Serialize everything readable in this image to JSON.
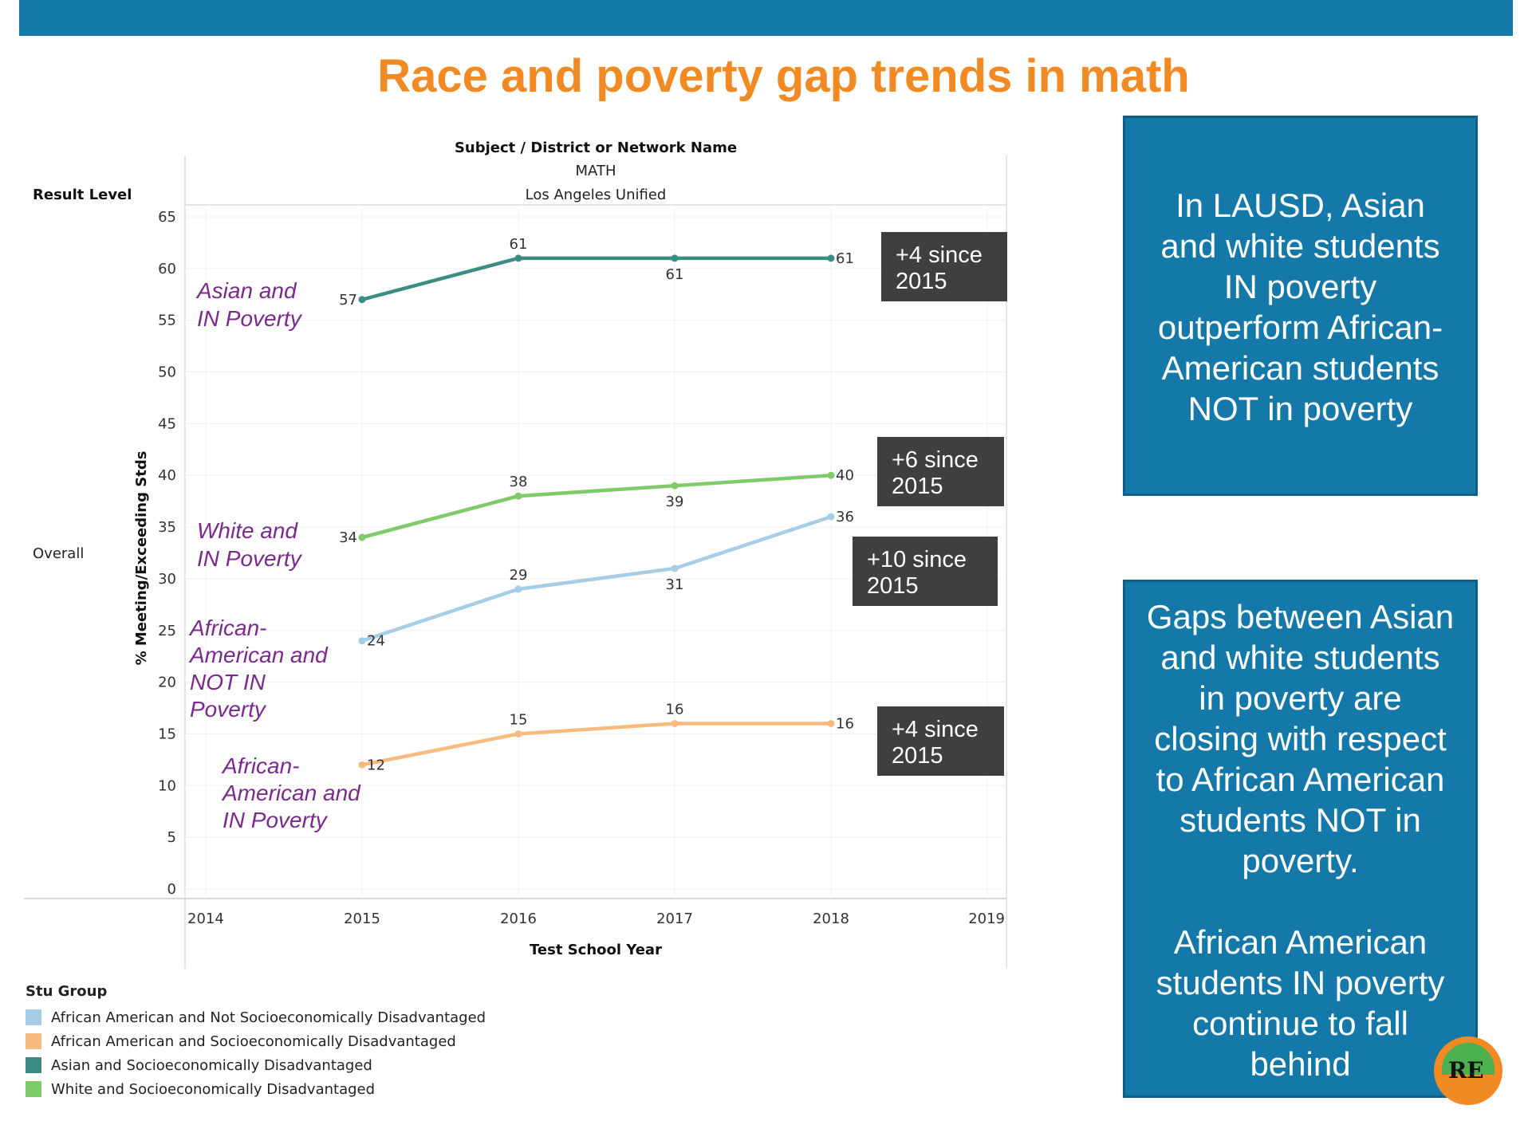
{
  "slide": {
    "title": "Race and poverty gap trends in math",
    "accent_color": "#1479a8",
    "title_color": "#f28a24"
  },
  "chart_data": {
    "type": "line",
    "header": {
      "subject_label": "Subject",
      "separator": "/",
      "district_label": "District or Network Name",
      "subject": "MATH",
      "district": "Los Angeles Unified"
    },
    "row_header": "Result Level",
    "row_label": "Overall",
    "ylabel": "% Meeting/Exceeding Stds",
    "xlabel": "Test School Year",
    "ylim": [
      0,
      65
    ],
    "yticks": [
      "0",
      "5",
      "10",
      "15",
      "20",
      "25",
      "30",
      "35",
      "40",
      "45",
      "50",
      "55",
      "60",
      "65"
    ],
    "xticks": [
      "2014",
      "2015",
      "2016",
      "2017",
      "2018",
      "2019"
    ],
    "x": [
      2015,
      2016,
      2017,
      2018
    ],
    "series": [
      {
        "name": "Asian and Socioeconomically Disadvantaged",
        "color": "#3b8c84",
        "values": [
          57,
          61,
          61,
          61
        ],
        "labels": [
          "57",
          "61",
          "61",
          "61"
        ]
      },
      {
        "name": "White and Socioeconomically Disadvantaged",
        "color": "#7fcb6a",
        "values": [
          34,
          38,
          39,
          40
        ],
        "labels": [
          "34",
          "38",
          "39",
          "40"
        ]
      },
      {
        "name": "African American and Not Socioeconomically Disadvantaged",
        "color": "#a6cde6",
        "values": [
          24,
          29,
          31,
          36
        ],
        "labels": [
          "24",
          "29",
          "31",
          "36"
        ]
      },
      {
        "name": "African American and Socioeconomically Disadvantaged",
        "color": "#f7bb7f",
        "values": [
          12,
          15,
          16,
          16
        ],
        "labels": [
          "12",
          "15",
          "16",
          "16"
        ]
      }
    ],
    "annotations": {
      "asian": [
        "Asian and",
        "IN Poverty"
      ],
      "white": [
        "White and",
        "IN Poverty"
      ],
      "aa_not": [
        "African-",
        "American and",
        "NOT IN",
        "Poverty"
      ],
      "aa_in": [
        "African-",
        "American and",
        "IN Poverty"
      ]
    },
    "deltas": [
      {
        "line1": "+4 since",
        "line2": "2015"
      },
      {
        "line1": "+6 since",
        "line2": "2015"
      },
      {
        "line1": "+10 since",
        "line2": "2015"
      },
      {
        "line1": "+4 since",
        "line2": "2015"
      }
    ],
    "legend": {
      "title": "Stu Group",
      "items": [
        {
          "label": "African American and Not Socioeconomically Disadvantaged",
          "color": "#a6cde6"
        },
        {
          "label": "African American and Socioeconomically Disadvantaged",
          "color": "#f7bb7f"
        },
        {
          "label": "Asian and Socioeconomically Disadvantaged",
          "color": "#3b8c84"
        },
        {
          "label": "White and Socioeconomically Disadvantaged",
          "color": "#7fcb6a"
        }
      ]
    }
  },
  "callouts": {
    "first": [
      "In LAUSD, Asian",
      "and white students",
      "IN poverty",
      "outperform African-",
      "American students",
      "NOT in poverty"
    ],
    "second_a": [
      "Gaps between Asian",
      "and white students",
      "in poverty are",
      "closing with respect",
      "to African American",
      "students NOT in",
      "poverty."
    ],
    "second_b": [
      "African American",
      "students IN poverty",
      "continue to fall",
      "behind"
    ]
  },
  "logo": {
    "text": "RE"
  }
}
